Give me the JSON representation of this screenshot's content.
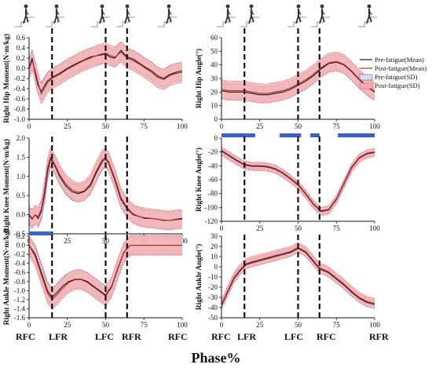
{
  "figure": {
    "x_title": "Phase%",
    "left_events": [
      "RFC",
      "LFR",
      "LFC",
      "RFR",
      "RFC"
    ],
    "right_events": [
      "RFC",
      "LFR",
      "LFC",
      "RFC",
      "RFR"
    ],
    "colors": {
      "pre_line": "#1a1a1a",
      "post_line": "#c0282c",
      "post_band": "#f4aaa8",
      "pre_band_dash": "#4f4f9a",
      "post_band_dash": "#e25a7a",
      "significance_bar": "#3b5fc9"
    }
  },
  "legend": {
    "items": [
      {
        "label": "Pre-fatigue(Mean)",
        "kind": "line",
        "color": "#1a1a1a"
      },
      {
        "label": "Post-fatigue(Mean)",
        "kind": "line",
        "color": "#c0282c"
      },
      {
        "label": "Pre-fatigue(SD)",
        "kind": "band",
        "color": "#4f4f9a"
      },
      {
        "label": "Post-fatigue(SD)",
        "kind": "band",
        "color": "#f4aaa8"
      }
    ]
  },
  "chart_data": [
    {
      "id": "hip-moment",
      "type": "line",
      "ylabel": "Right Hip Moment(N·m/kg)",
      "xlim": [
        0,
        100
      ],
      "ylim": [
        -1.0,
        0.6
      ],
      "yticks": [
        "0.6",
        "0.4",
        "0.2",
        "0.0",
        "-0.2",
        "-0.4",
        "-0.6",
        "-0.8",
        "-1.0"
      ],
      "ytick_values": [
        0.6,
        0.4,
        0.2,
        0.0,
        -0.2,
        -0.4,
        -0.6,
        -0.8,
        -1.0
      ],
      "xticks": [
        "0",
        "25",
        "50",
        "75",
        "100"
      ],
      "event_lines_x": [
        15,
        50,
        64
      ],
      "x": [
        0,
        2,
        4,
        6,
        8,
        10,
        12,
        15,
        20,
        25,
        30,
        35,
        40,
        45,
        50,
        53,
        56,
        60,
        64,
        68,
        72,
        76,
        80,
        84,
        88,
        92,
        96,
        100
      ],
      "series": [
        {
          "name": "Pre-fatigue(Mean)",
          "values": [
            0.0,
            0.2,
            -0.1,
            -0.35,
            -0.45,
            -0.35,
            -0.25,
            -0.18,
            -0.1,
            0.0,
            0.08,
            0.15,
            0.22,
            0.25,
            0.28,
            0.22,
            0.2,
            0.35,
            0.22,
            0.18,
            0.1,
            0.02,
            -0.05,
            -0.15,
            -0.2,
            -0.12,
            -0.08,
            -0.05
          ],
          "sd": 0.17
        },
        {
          "name": "Post-fatigue(Mean)",
          "values": [
            -0.02,
            0.15,
            -0.05,
            -0.3,
            -0.5,
            -0.4,
            -0.28,
            -0.2,
            -0.12,
            -0.02,
            0.06,
            0.14,
            0.2,
            0.26,
            0.3,
            0.25,
            0.22,
            0.32,
            0.2,
            0.15,
            0.08,
            0.0,
            -0.08,
            -0.18,
            -0.22,
            -0.14,
            -0.1,
            -0.08
          ],
          "sd": 0.2
        }
      ],
      "significance": []
    },
    {
      "id": "knee-moment",
      "type": "line",
      "ylabel": "Right Knee Moment(N·m/kg)",
      "xlim": [
        0,
        100
      ],
      "ylim": [
        -0.5,
        2.0
      ],
      "yticks": [
        "2.0",
        "1.5",
        "1.0",
        "0.5",
        "0.0",
        "-0.5"
      ],
      "ytick_values": [
        2.0,
        1.5,
        1.0,
        0.5,
        0.0,
        -0.5
      ],
      "xticks": [
        "0",
        "25",
        "50",
        "75",
        "100"
      ],
      "event_lines_x": [
        15,
        50,
        64
      ],
      "x": [
        0,
        2,
        4,
        6,
        8,
        10,
        12,
        14,
        16,
        20,
        24,
        28,
        32,
        36,
        40,
        44,
        48,
        50,
        52,
        56,
        60,
        64,
        68,
        72,
        76,
        80,
        84,
        88,
        92,
        96,
        100
      ],
      "series": [
        {
          "name": "Pre-fatigue(Mean)",
          "values": [
            0.0,
            -0.1,
            0.0,
            -0.1,
            0.1,
            0.5,
            1.1,
            1.45,
            1.35,
            1.0,
            0.75,
            0.6,
            0.55,
            0.6,
            0.75,
            1.1,
            1.4,
            1.45,
            1.35,
            0.9,
            0.4,
            0.15,
            0.0,
            -0.05,
            -0.1,
            -0.1,
            -0.12,
            -0.15,
            -0.15,
            -0.12,
            -0.1
          ],
          "sd": 0.22
        },
        {
          "name": "Post-fatigue(Mean)",
          "values": [
            -0.02,
            -0.12,
            0.0,
            -0.05,
            0.15,
            0.6,
            1.2,
            1.5,
            1.38,
            1.05,
            0.8,
            0.65,
            0.58,
            0.62,
            0.8,
            1.15,
            1.45,
            1.48,
            1.38,
            0.95,
            0.45,
            0.18,
            0.02,
            -0.05,
            -0.08,
            -0.1,
            -0.12,
            -0.14,
            -0.15,
            -0.13,
            -0.12
          ],
          "sd": 0.25
        }
      ],
      "significance": []
    },
    {
      "id": "ankle-moment",
      "type": "line",
      "ylabel": "Right Ankle Moment(N·m/kg)",
      "xlim": [
        0,
        100
      ],
      "ylim": [
        -1.6,
        0.2
      ],
      "yticks": [
        "0.2",
        "0.0",
        "-0.2",
        "-0.4",
        "-0.6",
        "-0.8",
        "-1.0",
        "-1.2",
        "-1.4",
        "-1.6"
      ],
      "ytick_values": [
        0.2,
        0.0,
        -0.2,
        -0.4,
        -0.6,
        -0.8,
        -1.0,
        -1.2,
        -1.4,
        -1.6
      ],
      "xticks": [
        "0",
        "25",
        "50",
        "75",
        "100"
      ],
      "event_lines_x": [
        15,
        50,
        64
      ],
      "x": [
        0,
        4,
        8,
        12,
        15,
        18,
        22,
        26,
        30,
        34,
        38,
        42,
        46,
        50,
        54,
        58,
        62,
        66,
        70,
        75,
        80,
        90,
        100
      ],
      "series": [
        {
          "name": "Pre-fatigue(Mean)",
          "values": [
            0.0,
            -0.2,
            -0.6,
            -1.0,
            -1.15,
            -1.05,
            -0.9,
            -0.8,
            -0.75,
            -0.75,
            -0.8,
            -0.9,
            -1.0,
            -1.1,
            -0.9,
            -0.5,
            -0.15,
            0.0,
            0.0,
            0.0,
            0.0,
            0.0,
            0.0
          ],
          "sd": 0.2
        },
        {
          "name": "Post-fatigue(Mean)",
          "values": [
            0.0,
            -0.25,
            -0.65,
            -1.05,
            -1.2,
            -1.1,
            -0.95,
            -0.82,
            -0.76,
            -0.76,
            -0.82,
            -0.92,
            -1.02,
            -1.12,
            -0.92,
            -0.52,
            -0.16,
            0.0,
            0.0,
            0.0,
            0.0,
            0.0,
            0.0
          ],
          "sd": 0.22
        }
      ],
      "significance": [
        [
          0,
          15
        ]
      ]
    },
    {
      "id": "hip-angle",
      "type": "line",
      "ylabel": "Right Hip Angle(°)",
      "xlim": [
        0,
        100
      ],
      "ylim": [
        0,
        60
      ],
      "yticks": [
        "60",
        "50",
        "40",
        "30",
        "20",
        "10",
        "0"
      ],
      "ytick_values": [
        60,
        50,
        40,
        30,
        20,
        10,
        0
      ],
      "xticks": [
        "0",
        "25",
        "50",
        "75",
        "100"
      ],
      "event_lines_x": [
        15,
        50,
        64
      ],
      "x": [
        0,
        5,
        10,
        15,
        20,
        25,
        30,
        35,
        40,
        45,
        50,
        55,
        60,
        65,
        70,
        75,
        80,
        85,
        90,
        95,
        100
      ],
      "series": [
        {
          "name": "Pre-fatigue(Mean)",
          "values": [
            21,
            20,
            20,
            20,
            19,
            18,
            18,
            19,
            20,
            22,
            25,
            28,
            32,
            37,
            41,
            42,
            40,
            35,
            29,
            24,
            20
          ],
          "sd": 6
        },
        {
          "name": "Post-fatigue(Mean)",
          "values": [
            22,
            21,
            21,
            21,
            20,
            19,
            19,
            20,
            21,
            23,
            26,
            29,
            33,
            38,
            41.5,
            42.5,
            40.5,
            35.5,
            29.5,
            24.5,
            20.5
          ],
          "sd": 7
        }
      ],
      "significance": []
    },
    {
      "id": "knee-angle",
      "type": "line",
      "ylabel": "Right Knee Angle(°)",
      "xlim": [
        0,
        100
      ],
      "ylim": [
        -120,
        0
      ],
      "yticks": [
        "0",
        "-20",
        "-40",
        "-60",
        "-80",
        "-100",
        "-120"
      ],
      "ytick_values": [
        0,
        -20,
        -40,
        -60,
        -80,
        -100,
        -120
      ],
      "xticks": [
        "0",
        "25",
        "50",
        "75",
        "100"
      ],
      "event_lines_x": [
        15,
        50,
        64
      ],
      "x": [
        0,
        5,
        10,
        15,
        20,
        25,
        30,
        35,
        40,
        45,
        50,
        55,
        60,
        65,
        70,
        75,
        80,
        85,
        90,
        95,
        100
      ],
      "series": [
        {
          "name": "Pre-fatigue(Mean)",
          "values": [
            -18,
            -25,
            -32,
            -38,
            -40,
            -40,
            -41,
            -44,
            -50,
            -58,
            -67,
            -80,
            -95,
            -105,
            -103,
            -88,
            -65,
            -42,
            -28,
            -22,
            -20
          ],
          "sd": 5
        },
        {
          "name": "Post-fatigue(Mean)",
          "values": [
            -19,
            -26,
            -33,
            -39,
            -41,
            -41,
            -42,
            -45,
            -51,
            -59,
            -68,
            -81,
            -96,
            -106,
            -104,
            -89,
            -66,
            -43,
            -29,
            -23,
            -21
          ],
          "sd": 6
        }
      ],
      "significance": [
        [
          0,
          22
        ],
        [
          38,
          52
        ],
        [
          58,
          64
        ],
        [
          76,
          100
        ]
      ]
    },
    {
      "id": "ankle-angle",
      "type": "line",
      "ylabel": "Right Ankle Angle(°)",
      "xlim": [
        0,
        100
      ],
      "ylim": [
        -50,
        30
      ],
      "yticks": [
        "30",
        "20",
        "10",
        "0",
        "-10",
        "-20",
        "-30",
        "-40",
        "-50"
      ],
      "ytick_values": [
        30,
        20,
        10,
        0,
        -10,
        -20,
        -30,
        -40,
        -50
      ],
      "xticks": [
        "0",
        "25",
        "50",
        "75",
        "100"
      ],
      "event_lines_x": [
        15,
        50,
        64
      ],
      "x": [
        0,
        4,
        8,
        12,
        16,
        20,
        25,
        30,
        35,
        40,
        45,
        50,
        55,
        60,
        64,
        70,
        75,
        80,
        85,
        90,
        95,
        100
      ],
      "series": [
        {
          "name": "Pre-fatigue(Mean)",
          "values": [
            -38,
            -25,
            -12,
            -4,
            2,
            4,
            6,
            8,
            10,
            12,
            14,
            18,
            14,
            5,
            -2,
            -6,
            -12,
            -18,
            -25,
            -31,
            -35,
            -37
          ],
          "sd": 4
        },
        {
          "name": "Post-fatigue(Mean)",
          "values": [
            -37,
            -24,
            -11,
            -3,
            3,
            5,
            7,
            9,
            11,
            13,
            15,
            19,
            15,
            6,
            -1,
            -5,
            -11,
            -17,
            -24,
            -30,
            -34,
            -36
          ],
          "sd": 5
        }
      ],
      "significance": []
    }
  ]
}
